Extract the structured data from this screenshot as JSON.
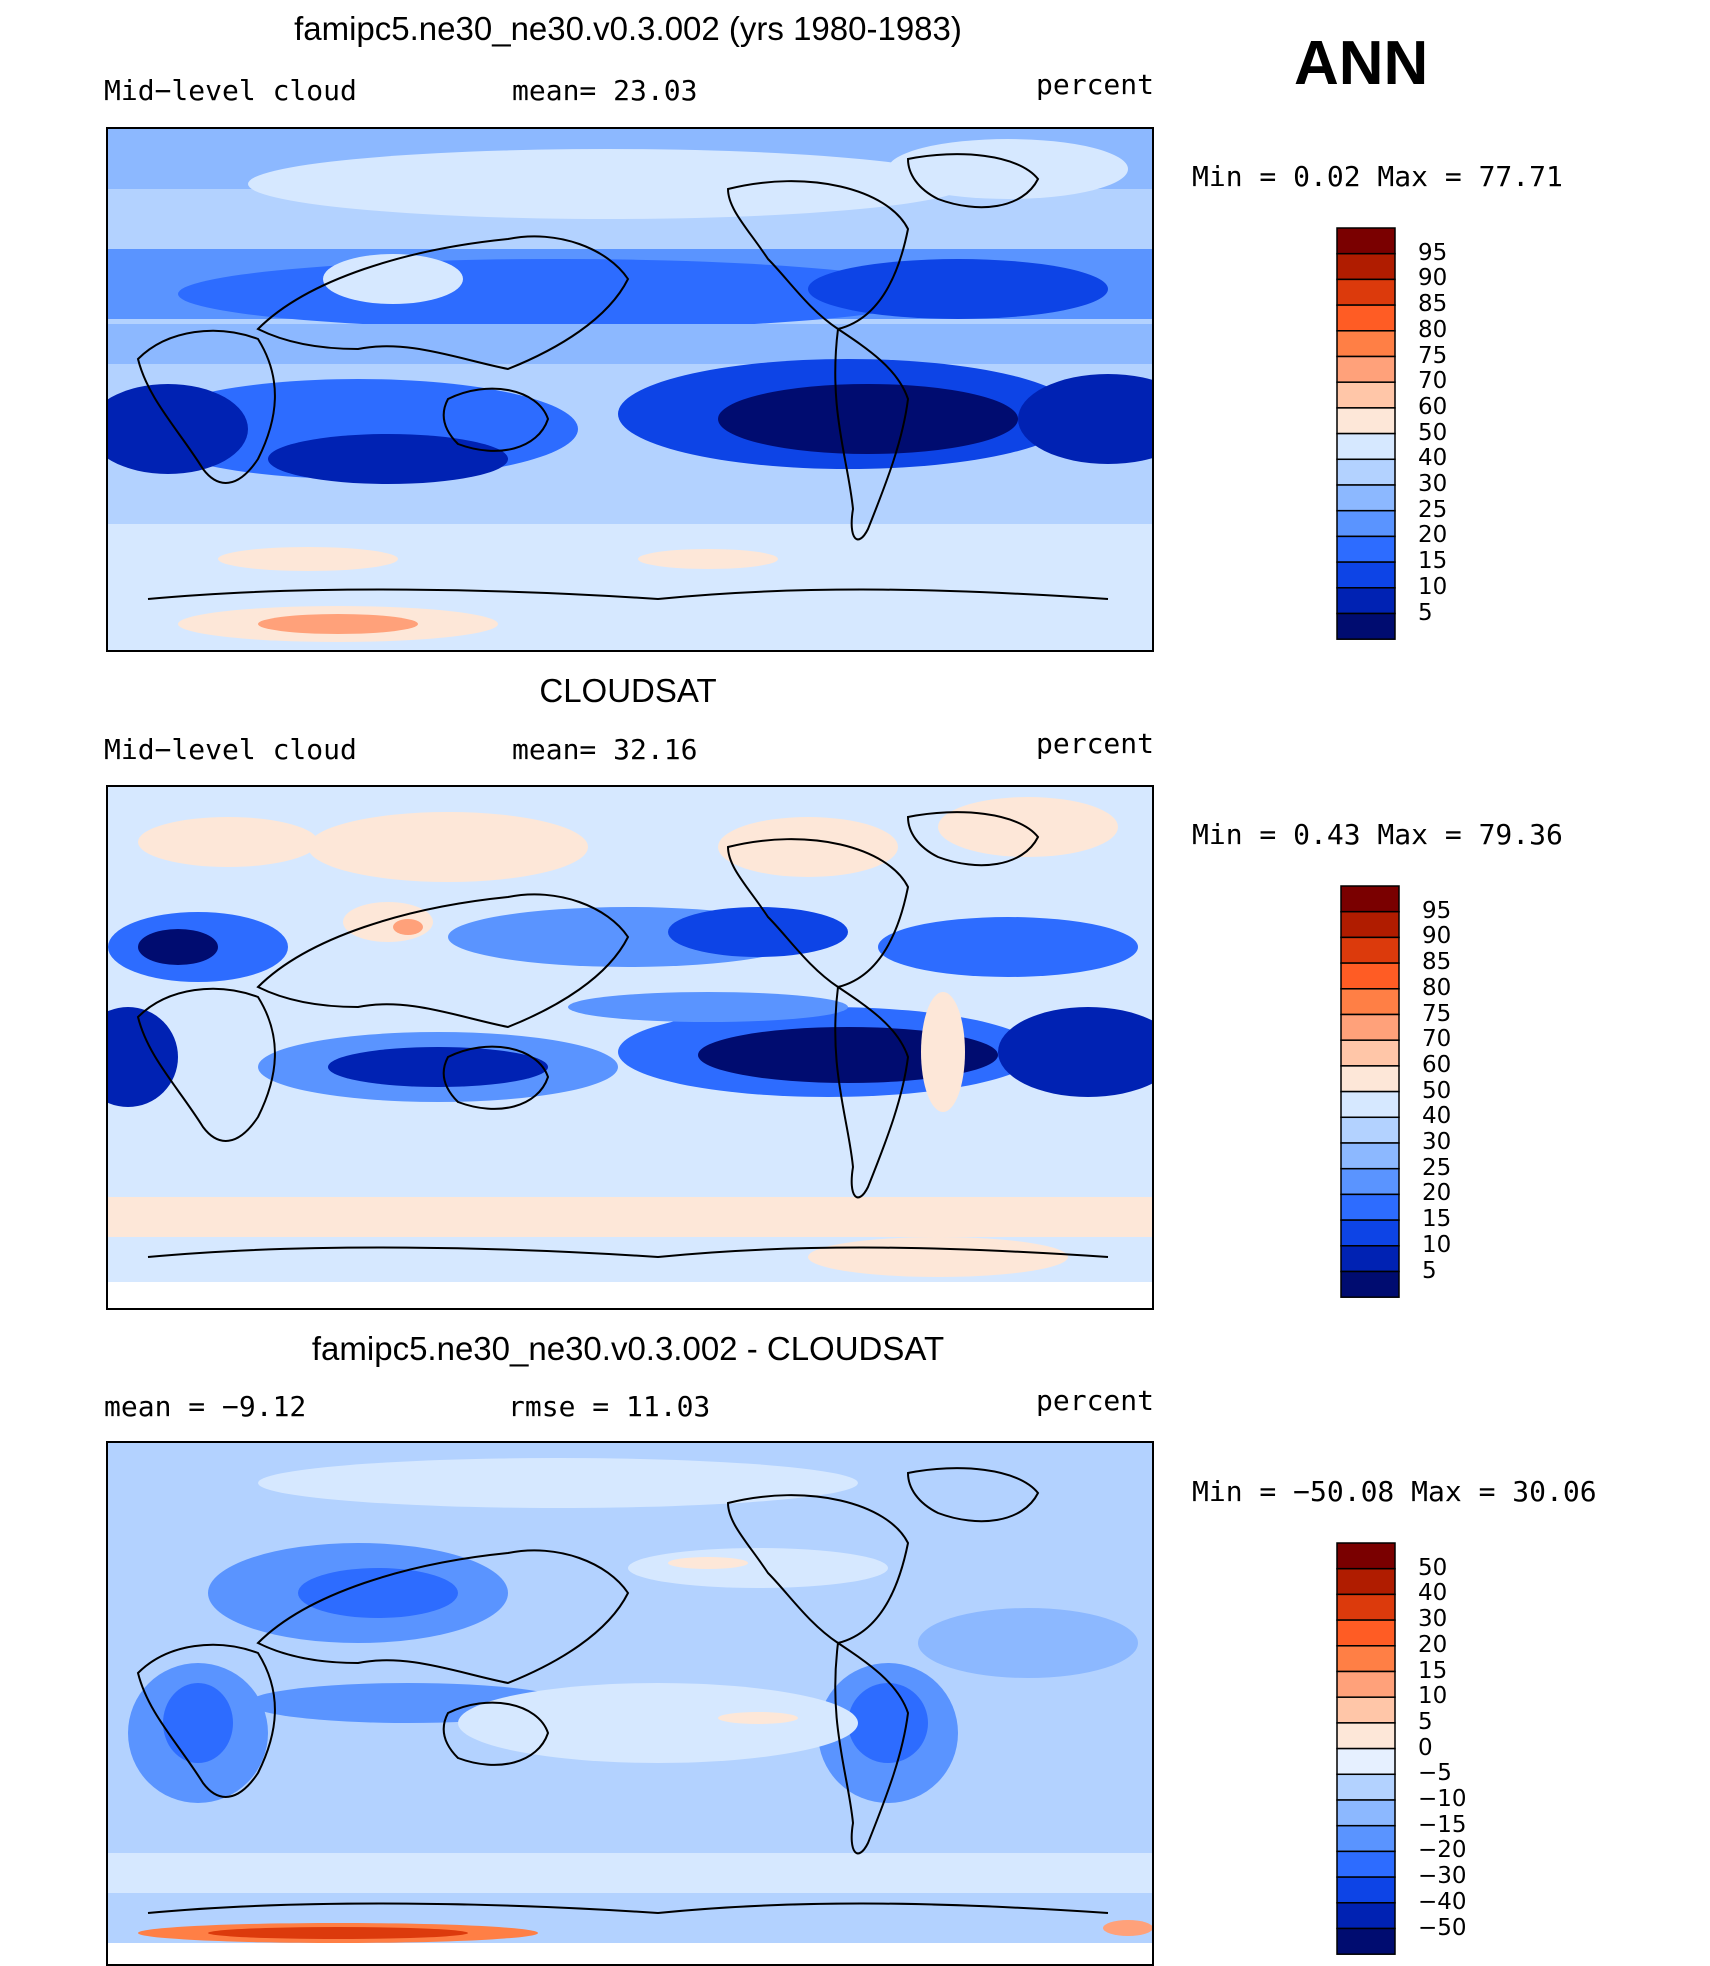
{
  "season": "ANN",
  "panels": [
    {
      "id": "model",
      "title": "famipc5.ne30_ne30.v0.3.002 (yrs 1980-1983)",
      "left_label": "Mid−level cloud",
      "center_label": "mean=   23.03",
      "right_label": "percent",
      "minmax": "Min =    0.02 Max =   77.71",
      "legend_levels": [
        "95",
        "90",
        "85",
        "80",
        "75",
        "70",
        "60",
        "50",
        "40",
        "30",
        "25",
        "20",
        "15",
        "10",
        "5"
      ],
      "legend_colors": [
        "#7a0000",
        "#b01c00",
        "#dc3a0c",
        "#ff5c24",
        "#ff7f45",
        "#ffa17a",
        "#ffc6a8",
        "#fde7d8",
        "#d6e8ff",
        "#b3d2ff",
        "#8cb8ff",
        "#5a94ff",
        "#2d6cff",
        "#0d44e6",
        "#0022b3",
        "#000c70"
      ]
    },
    {
      "id": "obs",
      "title": "CLOUDSAT",
      "left_label": "Mid−level cloud",
      "center_label": "mean=   32.16",
      "right_label": "percent",
      "minmax": "Min =    0.43 Max =   79.36",
      "legend_levels": [
        "95",
        "90",
        "85",
        "80",
        "75",
        "70",
        "60",
        "50",
        "40",
        "30",
        "25",
        "20",
        "15",
        "10",
        "5"
      ],
      "legend_colors": [
        "#7a0000",
        "#b01c00",
        "#dc3a0c",
        "#ff5c24",
        "#ff7f45",
        "#ffa17a",
        "#ffc6a8",
        "#fde7d8",
        "#d6e8ff",
        "#b3d2ff",
        "#8cb8ff",
        "#5a94ff",
        "#2d6cff",
        "#0d44e6",
        "#0022b3",
        "#000c70"
      ]
    },
    {
      "id": "diff",
      "title": "famipc5.ne30_ne30.v0.3.002 - CLOUDSAT",
      "left_label": "mean =   −9.12",
      "center_label": "rmse =   11.03",
      "right_label": "percent",
      "minmax": "Min = −50.08 Max =   30.06",
      "legend_levels": [
        "50",
        "40",
        "30",
        "20",
        "15",
        "10",
        "5",
        "0",
        "−5",
        "−10",
        "−15",
        "−20",
        "−30",
        "−40",
        "−50"
      ],
      "legend_colors": [
        "#7a0000",
        "#b01c00",
        "#dc3a0c",
        "#ff5c24",
        "#ff7f45",
        "#ffa17a",
        "#ffc6a8",
        "#fde7d8",
        "#e6f0ff",
        "#b3d2ff",
        "#8cb8ff",
        "#5a94ff",
        "#2d6cff",
        "#0d44e6",
        "#0022b3",
        "#000c70"
      ]
    }
  ],
  "chart_data": {
    "type": "heatmap",
    "subtype": "global contour maps with colorbars (3 panels)",
    "season": "ANN",
    "variable": "Mid-level cloud",
    "units": "percent",
    "panels": [
      {
        "name": "famipc5.ne30_ne30.v0.3.002 (yrs 1980-1983)",
        "mean": 23.03,
        "min": 0.02,
        "max": 77.71,
        "contour_levels": [
          5,
          10,
          15,
          20,
          25,
          30,
          40,
          50,
          60,
          70,
          75,
          80,
          85,
          90,
          95
        ]
      },
      {
        "name": "CLOUDSAT",
        "mean": 32.16,
        "min": 0.43,
        "max": 79.36,
        "contour_levels": [
          5,
          10,
          15,
          20,
          25,
          30,
          40,
          50,
          60,
          70,
          75,
          80,
          85,
          90,
          95
        ]
      },
      {
        "name": "famipc5.ne30_ne30.v0.3.002 - CLOUDSAT",
        "mean": -9.12,
        "rmse": 11.03,
        "min": -50.08,
        "max": 30.06,
        "contour_levels": [
          -50,
          -40,
          -30,
          -20,
          -15,
          -10,
          -5,
          0,
          5,
          10,
          15,
          20,
          30,
          40,
          50
        ]
      }
    ]
  }
}
